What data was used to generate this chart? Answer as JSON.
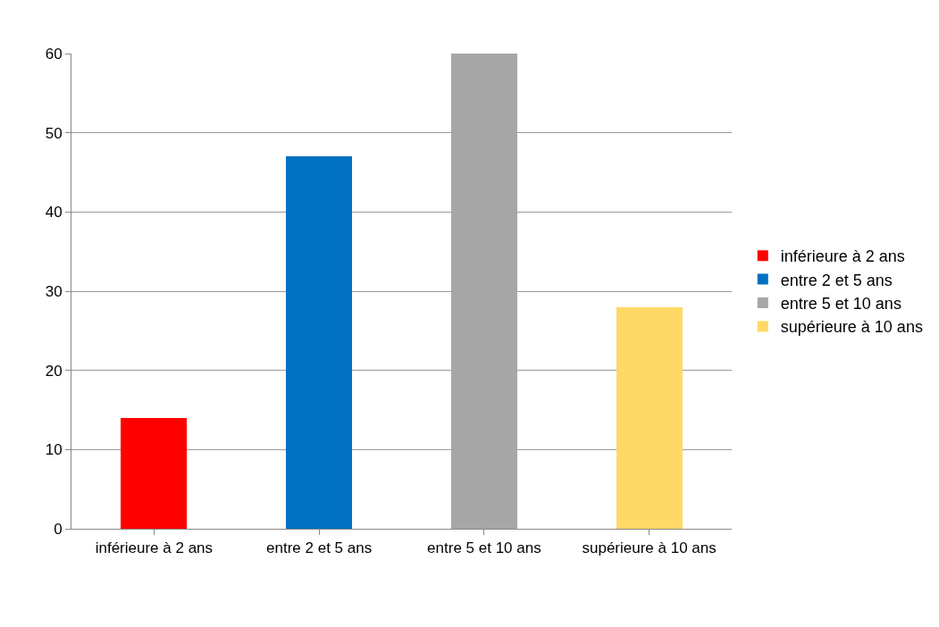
{
  "chart_data": {
    "type": "bar",
    "categories": [
      "inférieure à 2 ans",
      "entre 2 et 5 ans",
      "entre 5 et 10 ans",
      "supérieure à 10 ans"
    ],
    "series": [
      {
        "name": "inférieure à 2 ans",
        "color": "#ff0000",
        "values": [
          14,
          null,
          null,
          null
        ]
      },
      {
        "name": "entre 2 et 5 ans",
        "color": "#0070c0",
        "values": [
          null,
          47,
          null,
          null
        ]
      },
      {
        "name": "entre 5 et 10 ans",
        "color": "#a6a6a6",
        "values": [
          null,
          null,
          60,
          null
        ]
      },
      {
        "name": "supérieure à 10 ans",
        "color": "#ffd966",
        "values": [
          null,
          null,
          null,
          28
        ]
      }
    ],
    "stacked": true,
    "ylim": [
      0,
      60
    ],
    "yticks": [
      0,
      10,
      20,
      30,
      40,
      50,
      60
    ],
    "grid": "y",
    "legend": "right"
  }
}
